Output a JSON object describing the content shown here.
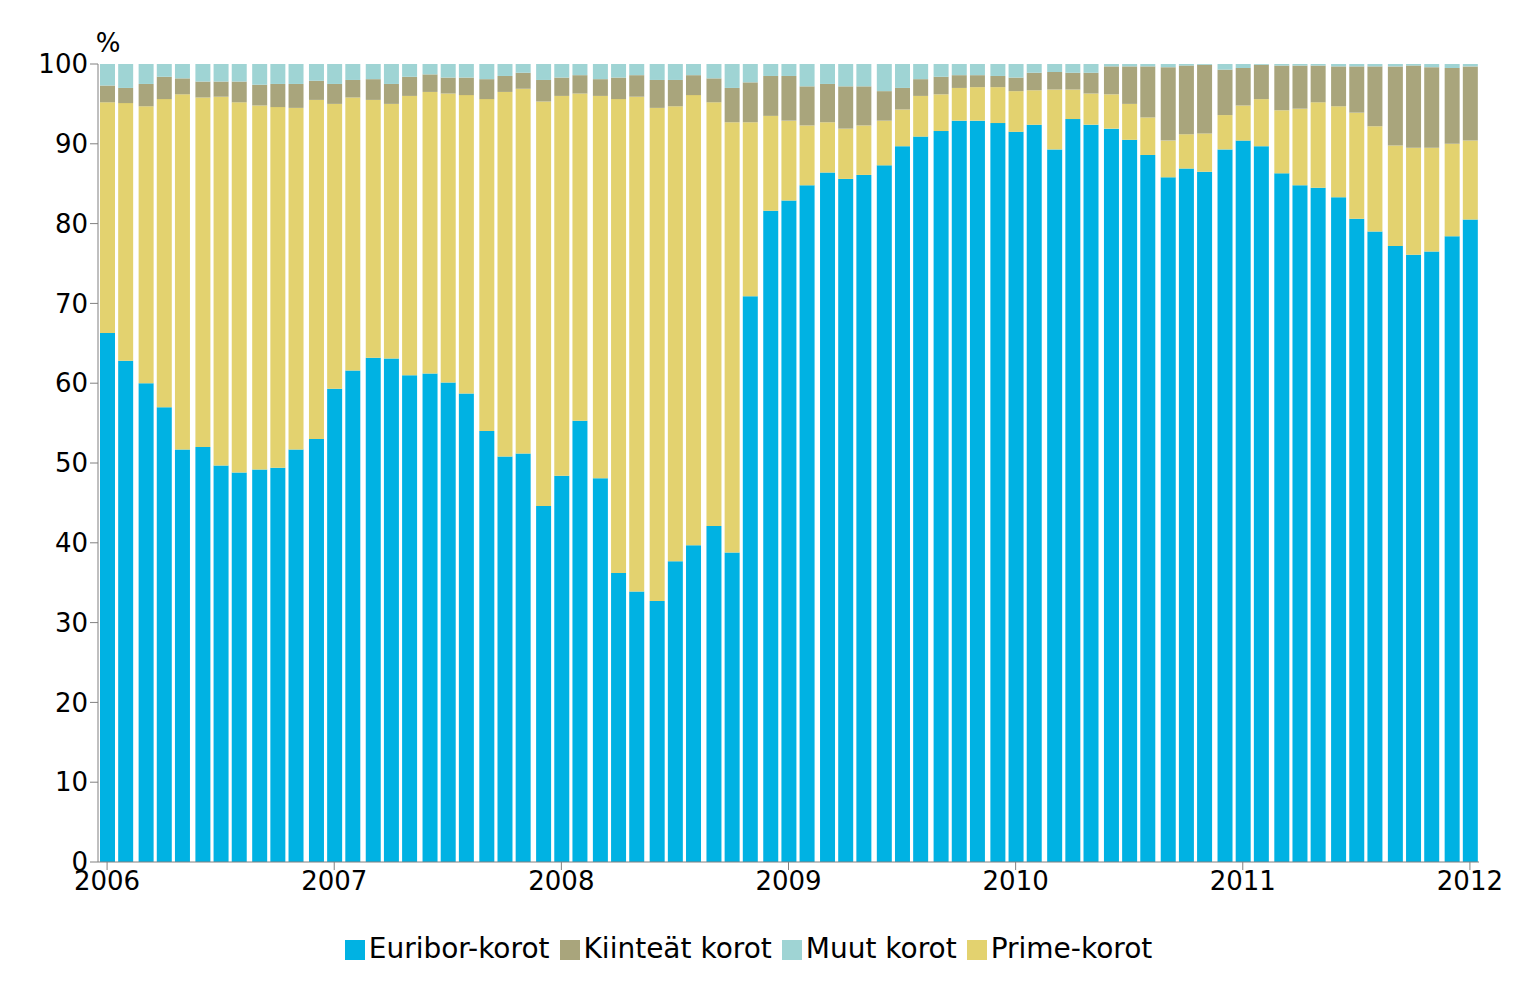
{
  "chart_data": {
    "type": "bar",
    "stacked": true,
    "grid": false,
    "legend": "bottom",
    "ylabel": "%",
    "x": [
      2006.0,
      2006.08,
      2006.17,
      2006.25,
      2006.33,
      2006.42,
      2006.5,
      2006.58,
      2006.67,
      2006.75,
      2006.83,
      2006.92,
      2007.0,
      2007.08,
      2007.17,
      2007.25,
      2007.33,
      2007.42,
      2007.5,
      2007.58,
      2007.67,
      2007.75,
      2007.83,
      2007.92,
      2008.0,
      2008.08,
      2008.17,
      2008.25,
      2008.33,
      2008.42,
      2008.5,
      2008.58,
      2008.67,
      2008.75,
      2008.83,
      2008.92,
      2009.0,
      2009.08,
      2009.17,
      2009.25,
      2009.33,
      2009.42,
      2009.5,
      2009.58,
      2009.67,
      2009.75,
      2009.83,
      2009.92,
      2010.0,
      2010.08,
      2010.17,
      2010.25,
      2010.33,
      2010.42,
      2010.5,
      2010.58,
      2010.67,
      2010.75,
      2010.83,
      2010.92,
      2011.0,
      2011.08,
      2011.17,
      2011.25,
      2011.33,
      2011.42,
      2011.5,
      2011.58,
      2011.67,
      2011.75,
      2011.83,
      2011.92,
      2012.0
    ],
    "xlim": [
      2005.96,
      2012.04
    ],
    "xticks": [
      2006,
      2007,
      2008,
      2009,
      2010,
      2011,
      2012
    ],
    "ylim": [
      0,
      100
    ],
    "yticks": [
      0,
      10,
      20,
      30,
      40,
      50,
      60,
      70,
      80,
      90,
      100
    ],
    "series": [
      {
        "name": "Euribor-korot",
        "color": "#00B2E3",
        "values": [
          66.3,
          62.8,
          60.0,
          57.0,
          51.7,
          52.0,
          49.7,
          48.8,
          49.2,
          49.4,
          51.7,
          53.0,
          59.3,
          61.6,
          63.2,
          63.1,
          61.0,
          61.2,
          60.1,
          58.7,
          54.0,
          50.8,
          51.2,
          44.6,
          48.4,
          55.3,
          48.1,
          36.2,
          33.9,
          32.7,
          37.7,
          39.7,
          42.1,
          38.8,
          70.9,
          81.6,
          82.9,
          84.8,
          86.4,
          85.6,
          86.1,
          87.3,
          89.7,
          90.9,
          91.6,
          92.9,
          92.9,
          92.6,
          91.5,
          92.4,
          89.3,
          93.1,
          92.4,
          91.9,
          90.5,
          88.6,
          85.8,
          86.9,
          86.5,
          89.3,
          90.4,
          89.7,
          86.3,
          84.8,
          84.5,
          83.3,
          80.6,
          79.0,
          77.2,
          76.1,
          76.5,
          78.4,
          80.5
        ]
      },
      {
        "name": "Prime-korot",
        "color": "#E3D26F",
        "values": [
          28.9,
          32.3,
          34.7,
          38.6,
          44.5,
          43.8,
          46.2,
          46.4,
          45.6,
          45.2,
          42.8,
          42.5,
          35.7,
          34.2,
          32.3,
          31.9,
          35.0,
          35.3,
          36.2,
          37.4,
          41.6,
          45.7,
          45.7,
          50.7,
          47.6,
          41.0,
          47.9,
          59.4,
          62.0,
          61.8,
          57.0,
          56.4,
          53.1,
          53.9,
          21.8,
          11.9,
          10.0,
          7.5,
          6.3,
          6.3,
          6.2,
          5.6,
          4.6,
          5.1,
          4.6,
          4.1,
          4.2,
          4.5,
          5.1,
          4.3,
          7.5,
          3.7,
          3.9,
          4.3,
          4.5,
          4.7,
          4.6,
          4.3,
          4.8,
          4.3,
          4.4,
          5.9,
          7.9,
          9.6,
          10.7,
          11.4,
          13.3,
          13.2,
          12.6,
          13.4,
          13.0,
          11.6,
          9.9
        ]
      },
      {
        "name": "Kiinteät korot",
        "color": "#A9A57C",
        "values": [
          2.1,
          1.9,
          2.8,
          2.8,
          2.0,
          2.0,
          1.9,
          2.6,
          2.6,
          2.9,
          3.0,
          2.4,
          2.5,
          2.2,
          2.6,
          2.5,
          2.4,
          2.2,
          2.0,
          2.2,
          2.5,
          2.0,
          2.0,
          2.7,
          2.3,
          2.3,
          2.1,
          2.7,
          2.7,
          3.5,
          3.3,
          2.5,
          3.0,
          4.3,
          5.0,
          5.0,
          5.6,
          4.9,
          4.8,
          5.3,
          4.9,
          3.7,
          2.7,
          2.1,
          2.2,
          1.6,
          1.5,
          1.4,
          1.7,
          2.2,
          2.2,
          2.1,
          2.6,
          3.5,
          4.7,
          6.4,
          9.2,
          8.6,
          8.6,
          5.7,
          4.7,
          4.3,
          5.6,
          5.4,
          4.6,
          5.0,
          5.8,
          7.5,
          9.9,
          10.3,
          10.1,
          9.5,
          9.3
        ]
      },
      {
        "name": "Muut korot",
        "color": "#9FD4D4",
        "values": [
          2.7,
          3.0,
          2.5,
          1.6,
          1.8,
          2.2,
          2.2,
          2.2,
          2.6,
          2.5,
          2.5,
          2.1,
          2.5,
          2.0,
          1.9,
          2.5,
          1.6,
          1.3,
          1.7,
          1.7,
          1.9,
          1.5,
          1.1,
          2.0,
          1.7,
          1.4,
          1.9,
          1.7,
          1.4,
          2.0,
          2.0,
          1.4,
          1.8,
          3.0,
          2.3,
          1.5,
          1.5,
          2.8,
          2.5,
          2.8,
          2.8,
          3.4,
          3.0,
          1.9,
          1.6,
          1.4,
          1.4,
          1.5,
          1.7,
          1.1,
          1.0,
          1.1,
          1.1,
          0.3,
          0.3,
          0.3,
          0.4,
          0.2,
          0.1,
          0.7,
          0.5,
          0.1,
          0.2,
          0.2,
          0.2,
          0.3,
          0.3,
          0.3,
          0.3,
          0.2,
          0.4,
          0.5,
          0.3
        ]
      }
    ]
  }
}
